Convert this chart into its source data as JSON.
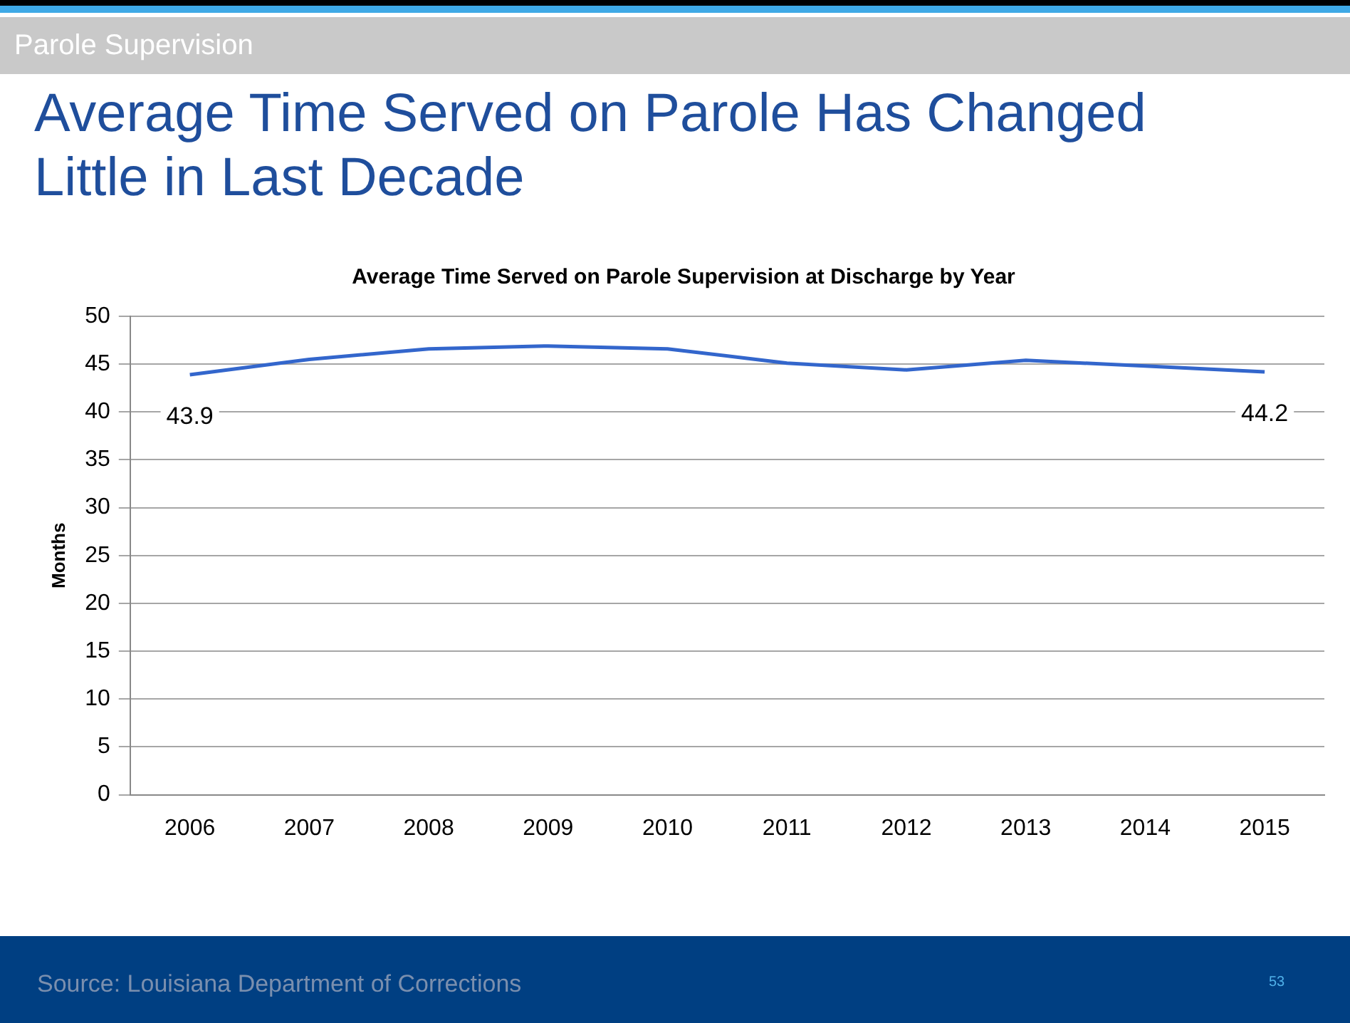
{
  "chart_data": {
    "type": "line",
    "title": "Average Time Served on Parole Has Changed Little in Last Decade",
    "subtitle": "Average Time Served on Parole Supervision at Discharge by Year",
    "ylabel": "Months",
    "annotations": [
      "Parole Supervision",
      "Source: Louisiana Department of Corrections",
      "53"
    ],
    "categories": [
      "2006",
      "2007",
      "2008",
      "2009",
      "2010",
      "2011",
      "2012",
      "2013",
      "2014",
      "2015"
    ],
    "series": [
      {
        "color": "#3366cc",
        "values": [
          43.9,
          45.5,
          46.6,
          46.9,
          46.6,
          45.1,
          44.4,
          45.4,
          44.8,
          44.2
        ],
        "value_labels": [
          "43.9",
          null,
          null,
          null,
          null,
          null,
          null,
          null,
          null,
          "44.2"
        ]
      }
    ],
    "ylim": [
      0,
      50
    ],
    "yticks": [
      0,
      5,
      10,
      15,
      20,
      25,
      30,
      35,
      40,
      45,
      50
    ],
    "grid": "y",
    "legend": false,
    "marker": "none",
    "line_style": "solid"
  }
}
